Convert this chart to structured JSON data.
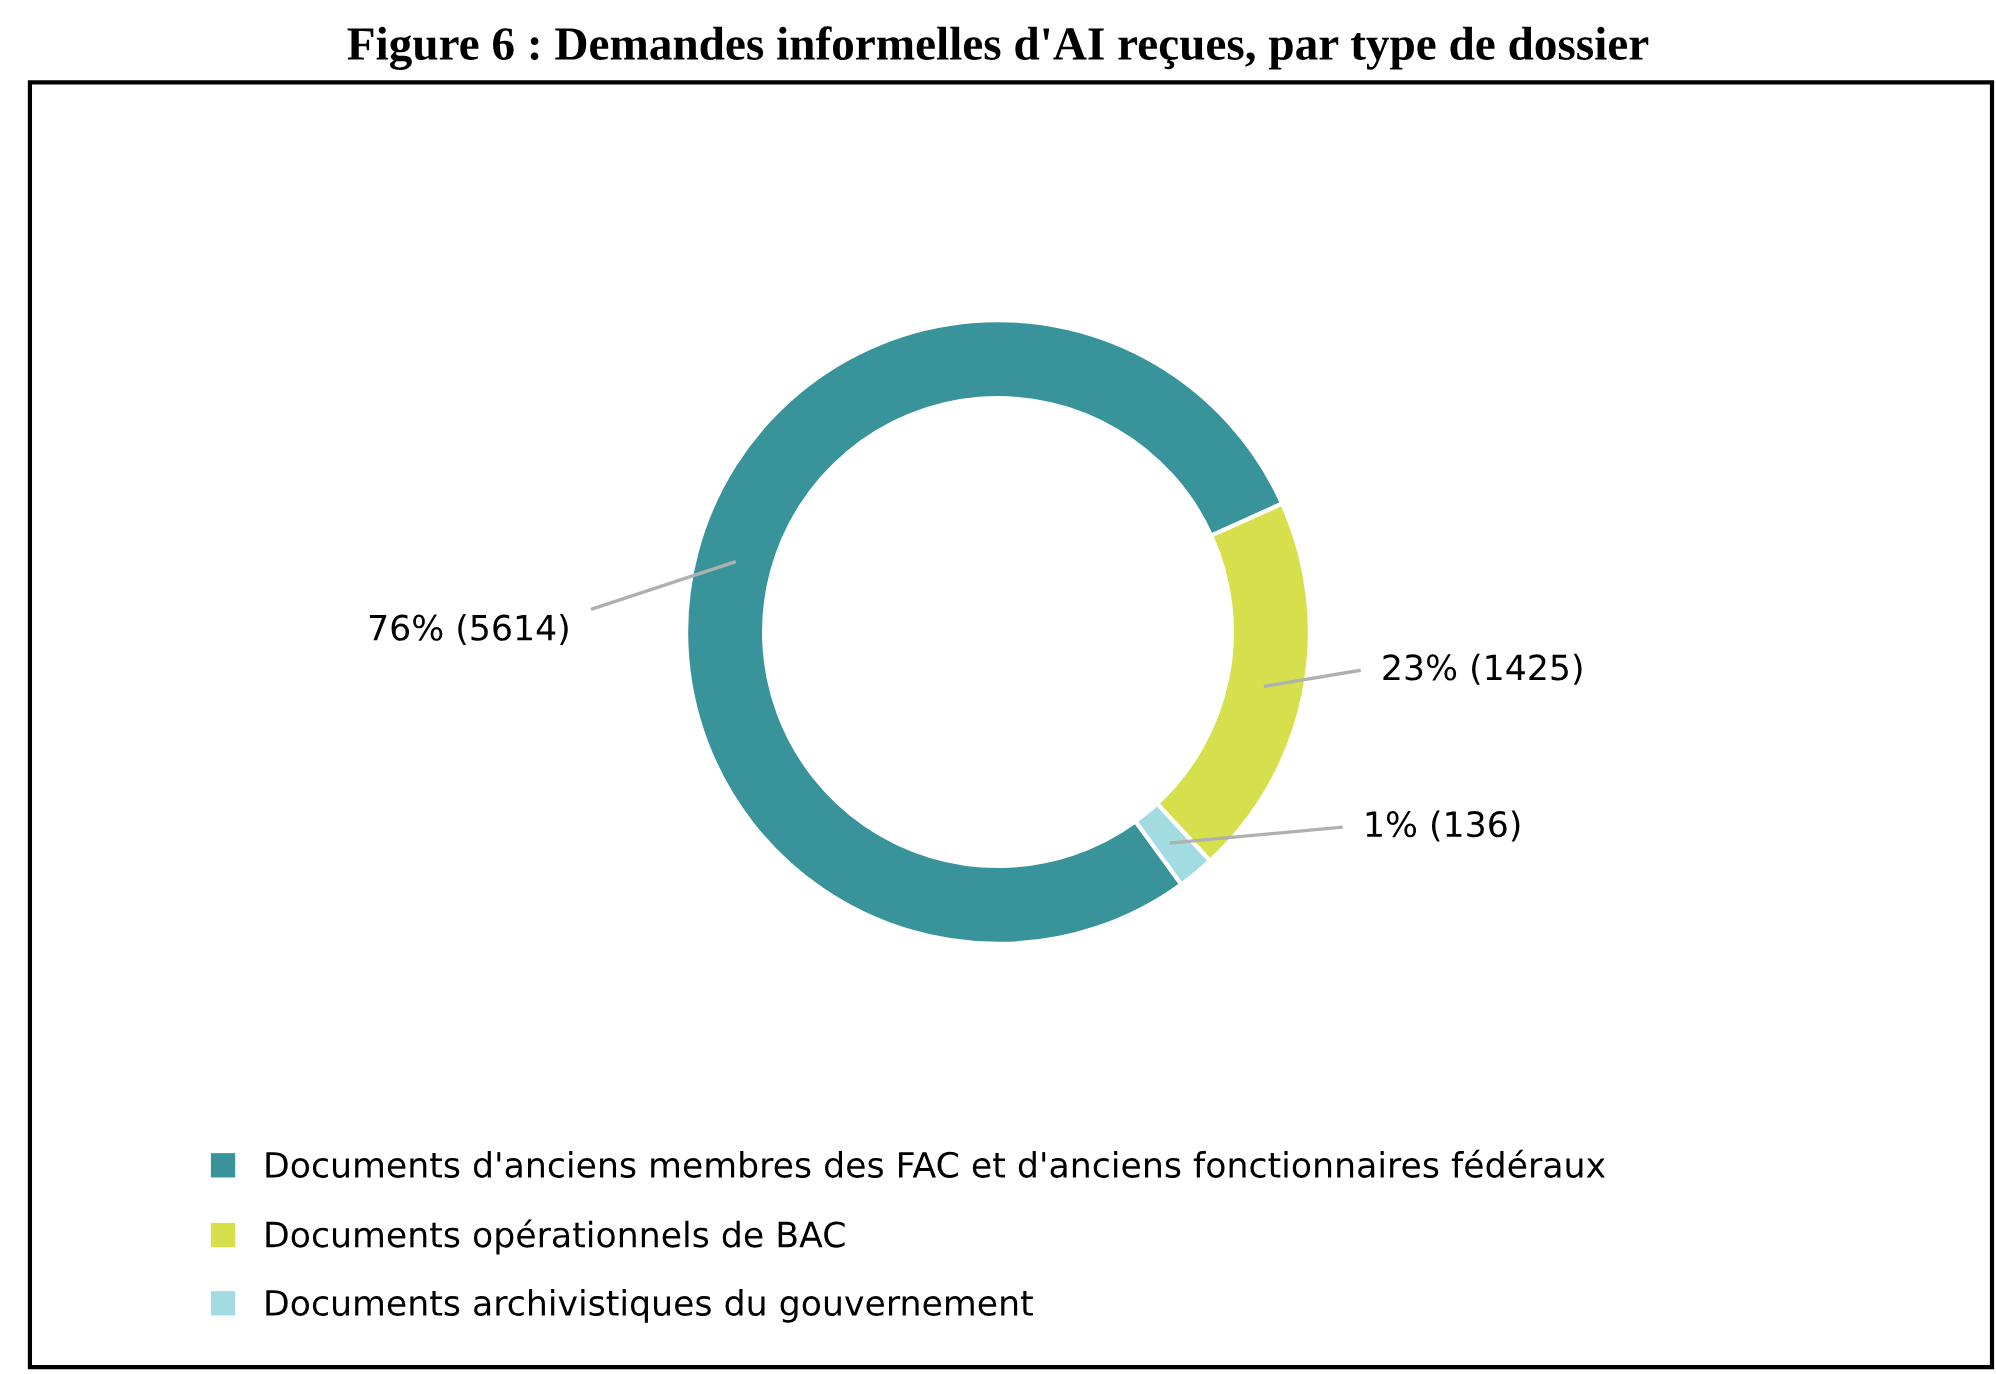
{
  "chart_data": {
    "type": "donut",
    "title": "Figure 6 : Demandes informelles d'AI reçues, par type de dossier",
    "categories": [
      "Documents d'anciens membres des FAC et d'anciens fonctionnaires fédéraux",
      "Documents opérationnels de BAC",
      "Documents archivistiques du gouvernement"
    ],
    "values": [
      5614,
      1425,
      136
    ],
    "colors": [
      "#38939a",
      "#d5e04c",
      "#a3dbe3"
    ],
    "value_labels": [
      "76% (5614)",
      "23% (1425)",
      "1% (136)"
    ],
    "legend": "bottom"
  }
}
